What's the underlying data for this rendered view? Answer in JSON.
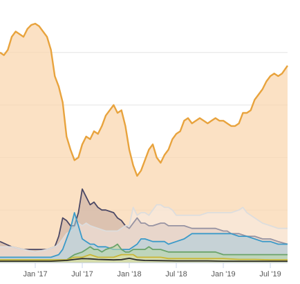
{
  "chart_data": {
    "type": "area",
    "title": "",
    "xlabel": "",
    "ylabel": "",
    "x_ticks": [
      {
        "label": "Jan '17",
        "t": 0
      },
      {
        "label": "Jul '17",
        "t": 6
      },
      {
        "label": "Jan '18",
        "t": 12
      },
      {
        "label": "Jul '18",
        "t": 18
      },
      {
        "label": "Jan '19",
        "t": 24
      },
      {
        "label": "Jul '19",
        "t": 30
      }
    ],
    "x_range": [
      -4.5,
      32.2
    ],
    "y_range": [
      0,
      100
    ],
    "y_gridlines": [
      20,
      40,
      60,
      80
    ],
    "grid": "horizontal",
    "legend": "none",
    "series": [
      {
        "color": "#e8a33d",
        "fill": "#f9d7b0",
        "opacity": 0.75,
        "points": [
          [
            -4.5,
            80
          ],
          [
            -4,
            79
          ],
          [
            -3.5,
            81
          ],
          [
            -3,
            86
          ],
          [
            -2.5,
            88
          ],
          [
            -2,
            87
          ],
          [
            -1.5,
            86
          ],
          [
            -1,
            89
          ],
          [
            -0.5,
            90.5
          ],
          [
            0,
            91
          ],
          [
            0.5,
            90
          ],
          [
            1,
            88
          ],
          [
            1.5,
            86
          ],
          [
            2,
            81
          ],
          [
            2.5,
            71
          ],
          [
            3,
            67
          ],
          [
            3.5,
            61
          ],
          [
            4,
            48
          ],
          [
            4.5,
            43
          ],
          [
            5,
            39
          ],
          [
            5.5,
            40
          ],
          [
            6,
            45
          ],
          [
            6.5,
            48
          ],
          [
            7,
            47
          ],
          [
            7.5,
            50
          ],
          [
            8,
            49
          ],
          [
            8.5,
            52
          ],
          [
            9,
            56
          ],
          [
            9.5,
            58
          ],
          [
            10,
            60
          ],
          [
            10.5,
            57
          ],
          [
            11,
            58
          ],
          [
            11.5,
            52
          ],
          [
            12,
            43
          ],
          [
            12.5,
            37
          ],
          [
            13,
            33
          ],
          [
            13.5,
            35
          ],
          [
            14,
            39
          ],
          [
            14.5,
            43
          ],
          [
            15,
            45
          ],
          [
            15.5,
            40
          ],
          [
            16,
            38
          ],
          [
            16.5,
            41
          ],
          [
            17,
            43
          ],
          [
            17.5,
            47
          ],
          [
            18,
            49
          ],
          [
            18.5,
            50
          ],
          [
            19,
            54
          ],
          [
            19.5,
            55
          ],
          [
            20,
            53
          ],
          [
            20.5,
            54
          ],
          [
            21,
            55
          ],
          [
            21.5,
            54
          ],
          [
            22,
            53
          ],
          [
            22.5,
            54
          ],
          [
            23,
            55
          ],
          [
            23.5,
            54
          ],
          [
            24,
            54
          ],
          [
            24.5,
            53
          ],
          [
            25,
            52
          ],
          [
            25.5,
            52
          ],
          [
            26,
            53
          ],
          [
            26.5,
            57
          ],
          [
            27,
            57
          ],
          [
            27.5,
            58
          ],
          [
            28,
            62
          ],
          [
            28.5,
            64
          ],
          [
            29,
            66
          ],
          [
            29.5,
            69
          ],
          [
            30,
            71
          ],
          [
            30.5,
            72
          ],
          [
            31,
            71
          ],
          [
            31.5,
            72
          ],
          [
            32.2,
            75
          ]
        ]
      },
      {
        "color": "#4a4764",
        "fill": "#c2a9a0",
        "opacity": 0.55,
        "points": [
          [
            -4.5,
            8
          ],
          [
            -3,
            6
          ],
          [
            -1.5,
            5
          ],
          [
            0,
            5
          ],
          [
            1.5,
            5
          ],
          [
            2.5,
            6
          ],
          [
            3,
            10
          ],
          [
            3.5,
            17
          ],
          [
            4,
            16
          ],
          [
            4.5,
            14
          ],
          [
            5,
            14
          ],
          [
            5.5,
            19
          ],
          [
            6,
            28
          ],
          [
            6.5,
            25
          ],
          [
            7,
            22
          ],
          [
            7.5,
            23
          ],
          [
            8,
            21
          ],
          [
            8.5,
            20
          ],
          [
            9,
            20
          ],
          [
            10,
            19
          ],
          [
            10.5,
            17
          ],
          [
            11,
            16
          ],
          [
            11.5,
            14
          ],
          [
            12,
            13
          ],
          [
            12.5,
            15
          ],
          [
            13,
            17
          ],
          [
            13.5,
            15
          ],
          [
            14,
            15
          ],
          [
            14.5,
            14
          ],
          [
            15,
            14
          ],
          [
            16,
            15
          ],
          [
            16.5,
            15
          ],
          [
            17,
            14
          ],
          [
            18,
            14
          ],
          [
            19,
            14
          ],
          [
            20,
            13
          ],
          [
            21,
            13
          ],
          [
            22,
            13
          ],
          [
            23,
            13
          ],
          [
            24,
            12
          ],
          [
            24.5,
            12
          ],
          [
            25,
            11
          ],
          [
            26,
            11
          ],
          [
            27,
            10
          ],
          [
            28,
            10
          ],
          [
            29,
            9
          ],
          [
            30,
            9
          ],
          [
            31,
            8
          ],
          [
            32.2,
            7
          ]
        ]
      },
      {
        "color": "#dddddd",
        "fill": "#f6f0ee",
        "opacity": 0.45,
        "points": [
          [
            -4.5,
            6
          ],
          [
            -3,
            6
          ],
          [
            -1.5,
            5
          ],
          [
            0,
            4
          ],
          [
            1.5,
            5
          ],
          [
            2.5,
            6
          ],
          [
            3,
            7
          ],
          [
            3.5,
            9
          ],
          [
            4,
            11
          ],
          [
            5,
            13
          ],
          [
            5.5,
            15
          ],
          [
            6,
            14
          ],
          [
            6.5,
            15
          ],
          [
            7,
            14
          ],
          [
            8,
            13
          ],
          [
            9,
            12
          ],
          [
            10,
            12
          ],
          [
            10.5,
            12
          ],
          [
            11,
            13
          ],
          [
            11.5,
            14
          ],
          [
            12,
            14
          ],
          [
            12.5,
            21
          ],
          [
            13,
            18
          ],
          [
            13.5,
            19
          ],
          [
            14,
            19
          ],
          [
            14.5,
            18
          ],
          [
            15,
            20
          ],
          [
            15.5,
            22
          ],
          [
            16,
            22
          ],
          [
            16.5,
            21
          ],
          [
            17,
            21
          ],
          [
            17.5,
            20
          ],
          [
            18,
            18
          ],
          [
            19,
            18
          ],
          [
            20,
            18
          ],
          [
            21,
            18
          ],
          [
            22,
            19
          ],
          [
            23,
            19
          ],
          [
            24,
            19
          ],
          [
            25,
            19
          ],
          [
            26,
            20
          ],
          [
            26.5,
            21
          ],
          [
            27,
            19
          ],
          [
            28,
            17
          ],
          [
            29,
            15
          ],
          [
            30,
            14
          ],
          [
            31,
            13
          ],
          [
            32.2,
            13
          ]
        ]
      },
      {
        "color": "#3a9ac9",
        "fill": "#aacfe0",
        "opacity": 0.55,
        "points": [
          [
            -4.5,
            2
          ],
          [
            0,
            2
          ],
          [
            2,
            2
          ],
          [
            3,
            3
          ],
          [
            3.5,
            5
          ],
          [
            4,
            9
          ],
          [
            4.5,
            13
          ],
          [
            5,
            19
          ],
          [
            5.5,
            14
          ],
          [
            6,
            9
          ],
          [
            6.5,
            8
          ],
          [
            7,
            7
          ],
          [
            7.5,
            7
          ],
          [
            8,
            6
          ],
          [
            9,
            6
          ],
          [
            10,
            5
          ],
          [
            11,
            5
          ],
          [
            12,
            5
          ],
          [
            13,
            7
          ],
          [
            13.5,
            9
          ],
          [
            14,
            9
          ],
          [
            15,
            8
          ],
          [
            16,
            8
          ],
          [
            16.5,
            8
          ],
          [
            17,
            7
          ],
          [
            18,
            8
          ],
          [
            19,
            9
          ],
          [
            19.5,
            10
          ],
          [
            20,
            11
          ],
          [
            21,
            11
          ],
          [
            22,
            11
          ],
          [
            23,
            11
          ],
          [
            24,
            11
          ],
          [
            24.5,
            11
          ],
          [
            25,
            11
          ],
          [
            26,
            10
          ],
          [
            27,
            10
          ],
          [
            28,
            9
          ],
          [
            29,
            8
          ],
          [
            30,
            8
          ],
          [
            31,
            7
          ],
          [
            32.2,
            7
          ]
        ]
      },
      {
        "color": "#6aa36a",
        "fill": "#b9d7a9",
        "opacity": 0.6,
        "points": [
          [
            -4.5,
            1
          ],
          [
            0,
            1
          ],
          [
            2,
            1
          ],
          [
            3,
            1
          ],
          [
            4,
            1
          ],
          [
            4.5,
            2
          ],
          [
            5,
            3
          ],
          [
            6,
            4
          ],
          [
            6.5,
            5
          ],
          [
            7,
            6
          ],
          [
            7.5,
            5
          ],
          [
            8,
            5
          ],
          [
            8.5,
            4
          ],
          [
            9,
            5
          ],
          [
            10,
            6
          ],
          [
            10.5,
            7
          ],
          [
            11,
            5
          ],
          [
            11.5,
            4
          ],
          [
            12,
            4
          ],
          [
            12.5,
            5
          ],
          [
            13,
            5
          ],
          [
            14,
            5
          ],
          [
            14.5,
            6
          ],
          [
            15,
            5
          ],
          [
            16,
            5
          ],
          [
            17,
            4
          ],
          [
            18,
            4
          ],
          [
            19,
            4
          ],
          [
            20,
            4
          ],
          [
            21,
            4
          ],
          [
            22,
            4
          ],
          [
            23,
            4
          ],
          [
            24,
            3
          ],
          [
            25,
            3
          ],
          [
            26,
            3
          ],
          [
            27,
            3
          ],
          [
            28,
            3
          ],
          [
            29,
            3
          ],
          [
            30,
            3
          ],
          [
            31,
            3
          ],
          [
            32.2,
            3
          ]
        ]
      },
      {
        "color": "#c9b635",
        "fill": "#e8e2a0",
        "opacity": 0.55,
        "points": [
          [
            -4.5,
            1
          ],
          [
            2,
            1
          ],
          [
            4,
            1
          ],
          [
            5,
            2
          ],
          [
            6,
            2
          ],
          [
            6.5,
            2.5
          ],
          [
            7,
            3
          ],
          [
            8,
            2
          ],
          [
            9,
            2
          ],
          [
            10,
            2
          ],
          [
            11,
            3
          ],
          [
            12,
            3
          ],
          [
            12.5,
            3
          ],
          [
            13,
            2
          ],
          [
            14,
            2
          ],
          [
            15,
            2
          ],
          [
            16,
            2
          ],
          [
            17,
            1.5
          ],
          [
            18,
            1.5
          ],
          [
            19,
            1.5
          ],
          [
            20,
            1.5
          ],
          [
            22,
            1.5
          ],
          [
            24,
            1.5
          ],
          [
            26,
            1.2
          ],
          [
            28,
            1.2
          ],
          [
            30,
            1
          ],
          [
            32.2,
            1
          ]
        ]
      },
      {
        "color": "#2b2b2b",
        "fill": "none",
        "opacity": 1,
        "points": [
          [
            -4.5,
            0.5
          ],
          [
            2,
            0.5
          ],
          [
            4,
            0.8
          ],
          [
            5,
            1.2
          ],
          [
            6,
            1.5
          ],
          [
            7,
            1.4
          ],
          [
            8,
            1.2
          ],
          [
            9,
            1.1
          ],
          [
            10,
            1.0
          ],
          [
            11,
            1.1
          ],
          [
            12,
            1.6
          ],
          [
            13,
            1.0
          ],
          [
            14,
            0.8
          ],
          [
            16,
            0.7
          ],
          [
            18,
            0.6
          ],
          [
            20,
            0.6
          ],
          [
            22,
            0.6
          ],
          [
            24,
            0.5
          ],
          [
            26,
            0.5
          ],
          [
            28,
            0.5
          ],
          [
            30,
            0.5
          ],
          [
            32.2,
            0.5
          ]
        ]
      }
    ]
  }
}
